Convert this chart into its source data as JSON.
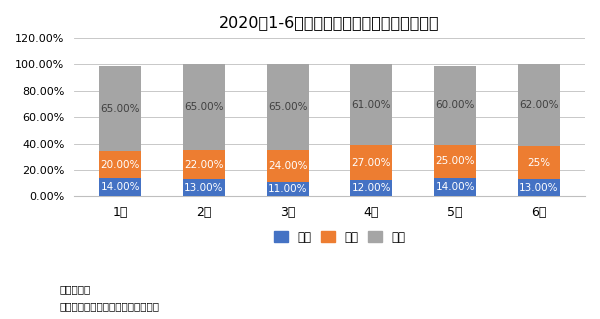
{
  "title": "2020年1-6月国内市场大、中、小挖销量占比",
  "categories": [
    "1月",
    "2月",
    "3月",
    "4月",
    "5月",
    "6月"
  ],
  "da_wa": [
    14,
    13,
    11,
    12,
    14,
    13
  ],
  "zhong_wa": [
    20,
    22,
    24,
    27,
    25,
    25
  ],
  "xiao_wa": [
    65,
    65,
    65,
    61,
    60,
    62
  ],
  "zhong_wa_labels": [
    "20.00%",
    "22.00%",
    "24.00%",
    "27.00%",
    "25.00%",
    "25%"
  ],
  "da_wa_color": "#4472C4",
  "zhong_wa_color": "#ED7D31",
  "xiao_wa_color": "#A5A5A5",
  "da_wa_label": "大挖",
  "zhong_wa_label": "中挖",
  "xiao_wa_label": "小挖",
  "ylim": [
    0,
    120
  ],
  "yticks": [
    0,
    20,
    40,
    60,
    80,
    100,
    120
  ],
  "ytick_labels": [
    "0.00%",
    "20.00%",
    "40.00%",
    "60.00%",
    "80.00%",
    "100.00%",
    "120.00%"
  ],
  "source_text1": "数据来源：",
  "source_text2": "中国工程机械工业协会挖掘机械分会",
  "bar_width": 0.5,
  "background_color": "#FFFFFF",
  "grid_color": "#BFBFBF",
  "label_color": "#404040"
}
